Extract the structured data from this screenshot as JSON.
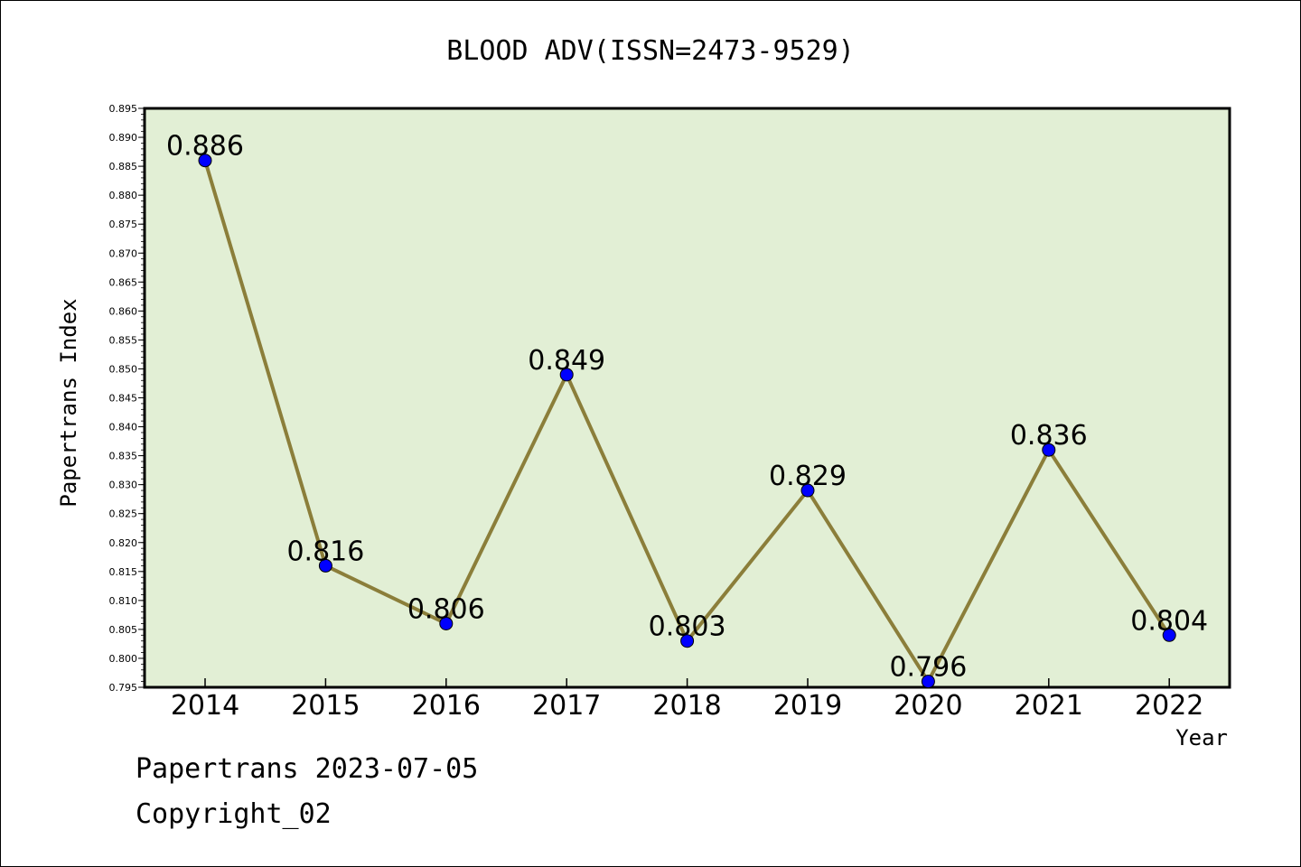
{
  "chart_data": {
    "type": "line",
    "title": "BLOOD ADV(ISSN=2473-9529)",
    "xlabel": "Year",
    "ylabel": "Papertrans Index",
    "categories": [
      "2014",
      "2015",
      "2016",
      "2017",
      "2018",
      "2019",
      "2020",
      "2021",
      "2022"
    ],
    "series": [
      {
        "values": [
          0.886,
          0.816,
          0.806,
          0.849,
          0.803,
          0.829,
          0.796,
          0.836,
          0.804
        ],
        "data_labels": [
          "0.886",
          "0.816",
          "0.806",
          "0.849",
          "0.803",
          "0.829",
          "0.796",
          "0.836",
          "0.804"
        ]
      }
    ],
    "ylim": [
      0.795,
      0.895
    ],
    "y_ticks": [
      "0.795",
      "0.800",
      "0.805",
      "0.810",
      "0.815",
      "0.820",
      "0.825",
      "0.830",
      "0.835",
      "0.840",
      "0.845",
      "0.850",
      "0.855",
      "0.860",
      "0.865",
      "0.870",
      "0.875",
      "0.880",
      "0.885",
      "0.890",
      "0.895"
    ],
    "grid": false,
    "legend": "none",
    "colors": {
      "plot_background": "#e2efd5",
      "line": "#8b7e3a",
      "marker": "#0000ff"
    }
  },
  "footer": {
    "date_line": "Papertrans 2023-07-05",
    "copyright_line": "Copyright_02"
  }
}
